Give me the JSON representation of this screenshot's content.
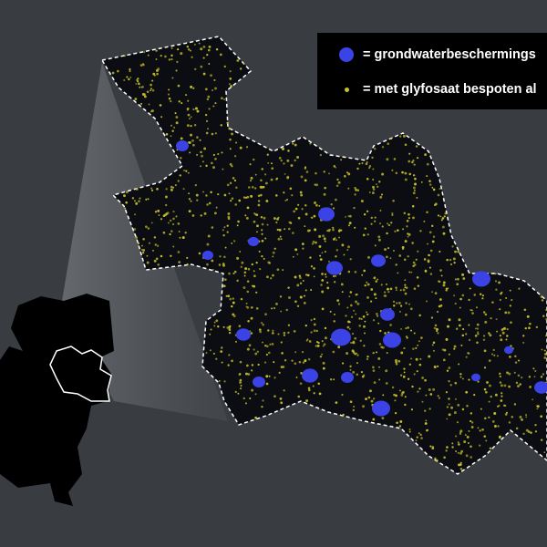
{
  "legend": {
    "items": [
      {
        "symbol": "large-blue-dot",
        "color": "#3b43e6",
        "label": "= grondwaterbeschermings"
      },
      {
        "symbol": "small-yellow-dot",
        "color": "#c9c12a",
        "label": "= met glyfosaat bespoten al"
      }
    ]
  },
  "colors": {
    "background": "#393c41",
    "region": "#0b0d12",
    "protection_area": "#3b43e6",
    "sprayed_field": "#c9c12a",
    "netherlands": "#000000"
  }
}
